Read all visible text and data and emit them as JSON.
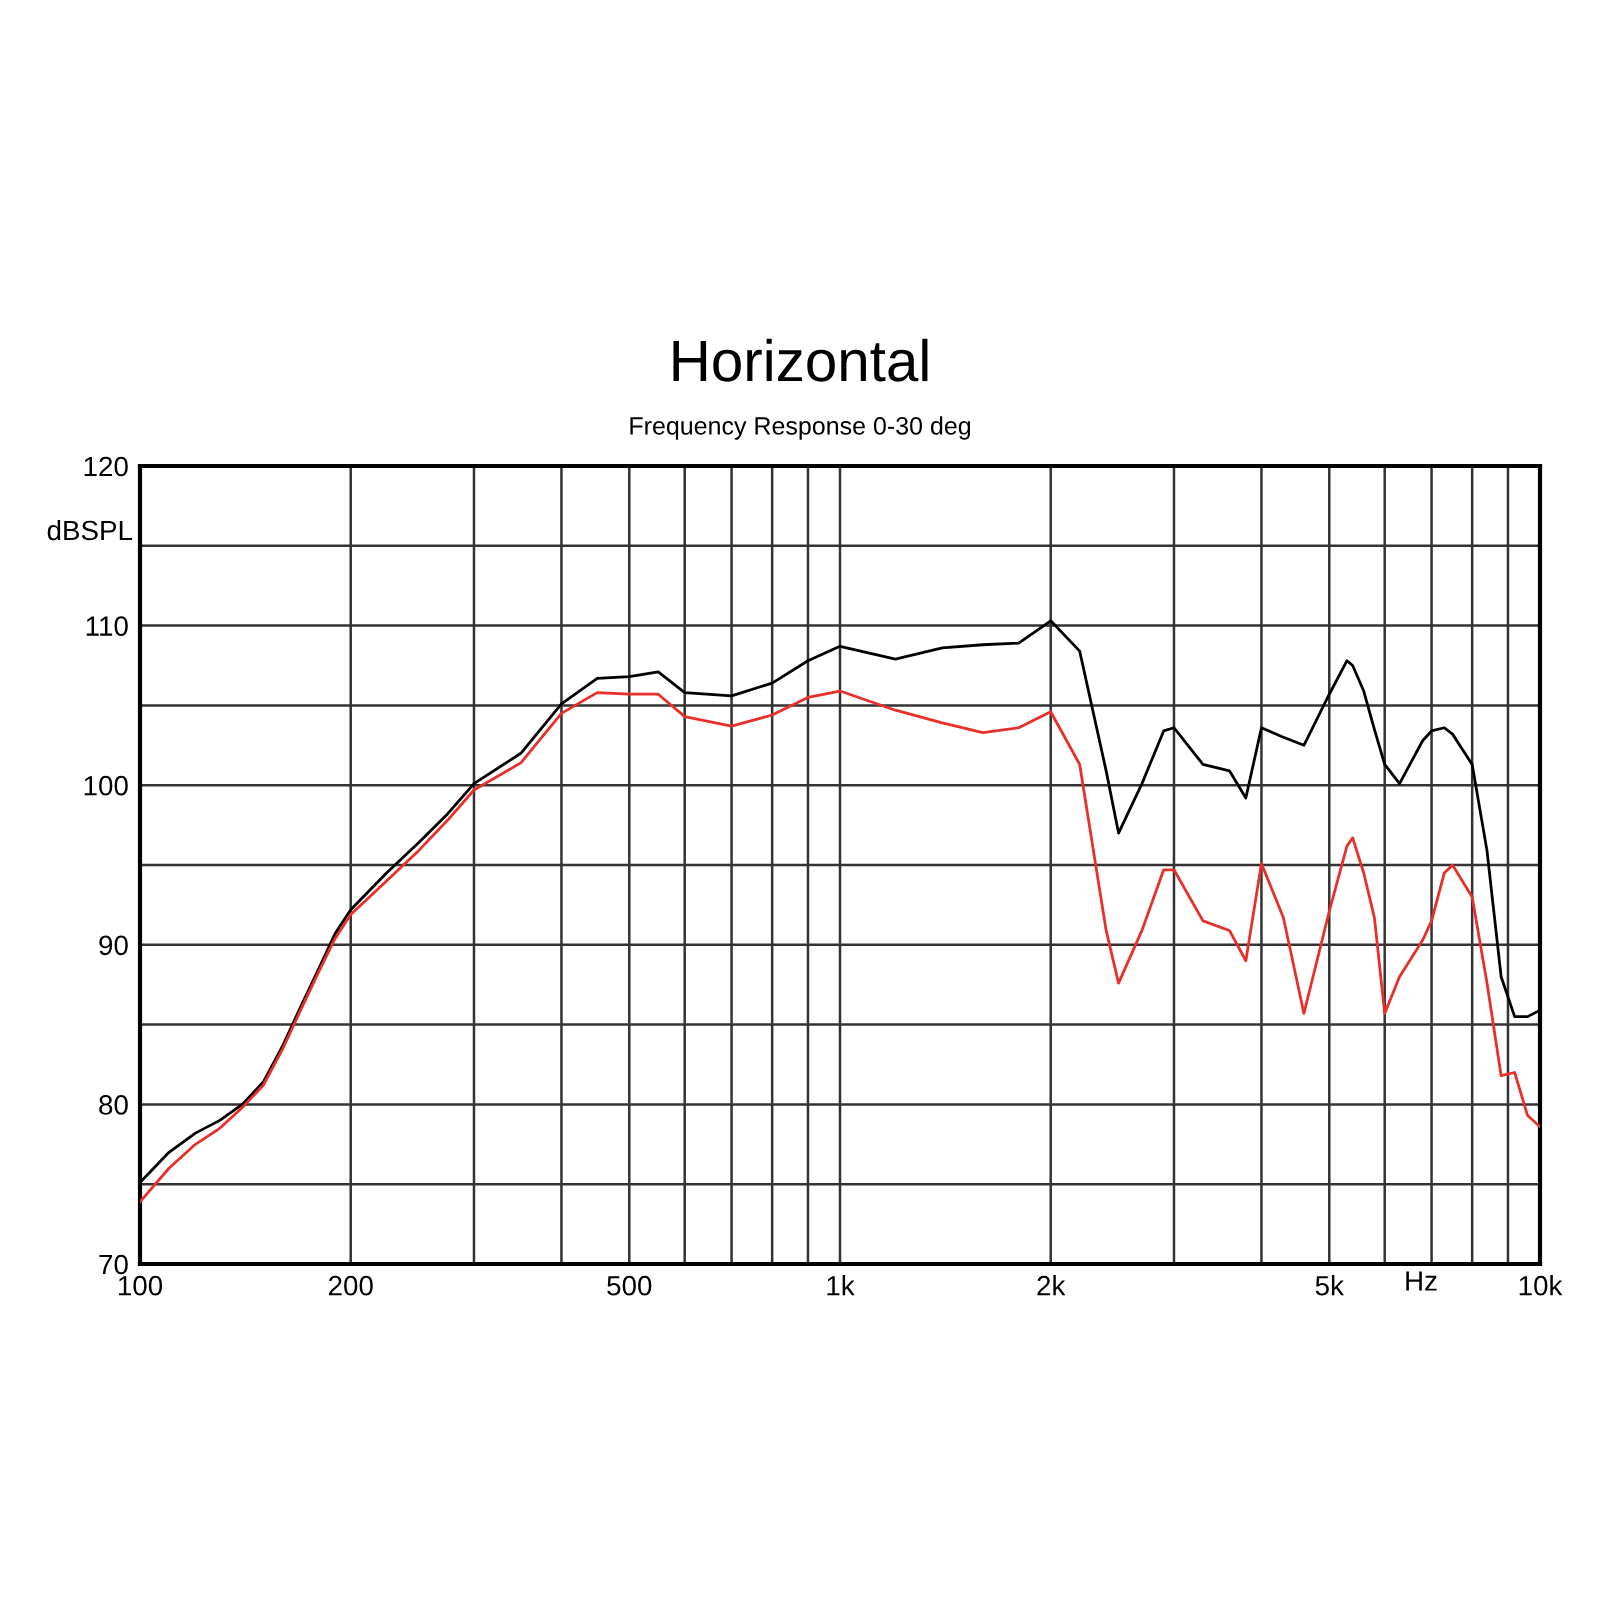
{
  "chart_data": {
    "type": "line",
    "title": "Horizontal",
    "subtitle": "Frequency Response 0-30 deg",
    "xlabel": "Hz",
    "ylabel": "dBSPL",
    "log": "x",
    "grid": true,
    "x": [
      100,
      110,
      120,
      130,
      140,
      150,
      160,
      170,
      180,
      190,
      200,
      225,
      250,
      275,
      300,
      350,
      400,
      450,
      500,
      550,
      600,
      700,
      800,
      900,
      1000,
      1200,
      1400,
      1600,
      1800,
      2000,
      2200,
      2400,
      2500,
      2700,
      2900,
      3000,
      3300,
      3600,
      3800,
      4000,
      4300,
      4600,
      5000,
      5300,
      5400,
      5600,
      5800,
      6000,
      6300,
      6800,
      7000,
      7300,
      7500,
      8000,
      8400,
      8800,
      9200,
      9600,
      10000
    ],
    "series": [
      {
        "color": "#000000",
        "values": [
          75.1,
          77,
          78.2,
          79,
          80,
          81.4,
          83.7,
          86.2,
          88.5,
          90.7,
          92.2,
          94.5,
          96.4,
          98.2,
          100.1,
          102,
          105.1,
          106.7,
          106.8,
          107.1,
          105.8,
          105.6,
          106.4,
          107.8,
          108.7,
          107.9,
          108.6,
          108.8,
          108.9,
          110.3,
          108.4,
          100.9,
          97,
          100.1,
          103.4,
          103.6,
          101.3,
          100.9,
          99.2,
          103.6,
          103,
          102.5,
          105.7,
          107.8,
          107.5,
          105.9,
          103.5,
          101.3,
          100.1,
          102.8,
          103.4,
          103.6,
          103.2,
          101.3,
          95.9,
          88,
          85.5,
          85.5,
          85.9
        ]
      },
      {
        "color": "#e8302a",
        "values": [
          73.9,
          76,
          77.5,
          78.5,
          79.8,
          81.2,
          83.5,
          86,
          88.3,
          90.4,
          91.9,
          94,
          95.9,
          97.8,
          99.7,
          101.4,
          104.5,
          105.8,
          105.7,
          105.7,
          104.3,
          103.7,
          104.4,
          105.5,
          105.9,
          104.7,
          103.9,
          103.3,
          103.6,
          104.6,
          101.3,
          90.9,
          87.6,
          90.9,
          94.7,
          94.7,
          91.5,
          90.9,
          89,
          95.1,
          91.7,
          85.7,
          92.1,
          96.2,
          96.7,
          94.5,
          91.7,
          85.7,
          88,
          90.3,
          91.5,
          94.5,
          95,
          93,
          87.6,
          81.8,
          82,
          79.3,
          78.6
        ]
      }
    ],
    "xlim": [
      100,
      10000
    ],
    "ylim": [
      70,
      120
    ],
    "xticks": [
      100,
      200,
      {
        "value": 300,
        "label": null
      },
      {
        "value": 400,
        "label": null
      },
      500,
      {
        "value": 600,
        "label": null
      },
      {
        "value": 700,
        "label": null
      },
      {
        "value": 800,
        "label": null
      },
      {
        "value": 900,
        "label": null
      },
      {
        "value": 1000,
        "label": "1k"
      },
      {
        "value": 2000,
        "label": "2k"
      },
      {
        "value": 3000,
        "label": null
      },
      {
        "value": 4000,
        "label": null
      },
      {
        "value": 5000,
        "label": "5k"
      },
      {
        "value": 6000,
        "label": null
      },
      {
        "value": 7000,
        "label": null
      },
      {
        "value": 8000,
        "label": null
      },
      {
        "value": 9000,
        "label": null
      },
      {
        "value": 10000,
        "label": "10k"
      }
    ],
    "yticks": [
      70,
      {
        "value": 75,
        "label": null
      },
      80,
      {
        "value": 85,
        "label": null
      },
      90,
      {
        "value": 95,
        "label": null
      },
      100,
      {
        "value": 105,
        "label": null
      },
      110,
      {
        "value": 115,
        "label": null
      },
      120
    ]
  }
}
